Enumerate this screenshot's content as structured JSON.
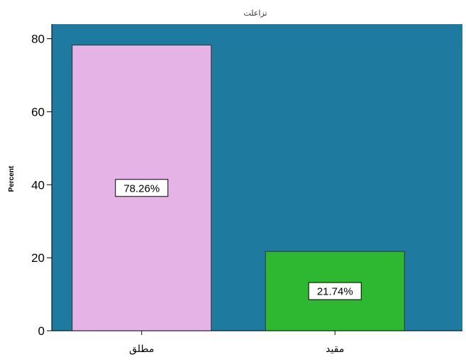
{
  "chart_data": {
    "type": "bar",
    "title": "تزاعلت",
    "xlabel": "",
    "ylabel": "Percent",
    "categories": [
      "مطلق",
      "مقيد"
    ],
    "values": [
      78.26,
      21.74
    ],
    "data_labels": [
      "78.26%",
      "21.74%"
    ],
    "bar_colors": [
      "#e6b3e6",
      "#2eb832"
    ],
    "plot_background": "#1e7a9e",
    "ylim": [
      0,
      84
    ],
    "yticks": [
      0,
      20,
      40,
      60,
      80
    ],
    "ytick_labels": [
      "0",
      "20",
      "40",
      "60",
      "80"
    ],
    "grid": false,
    "legend": "none"
  }
}
